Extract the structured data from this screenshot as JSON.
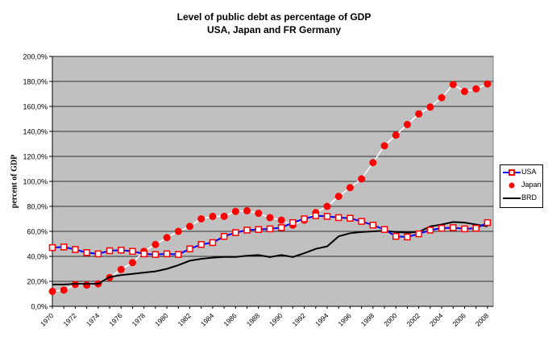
{
  "chart_data": {
    "type": "line",
    "title": "Level of public debt as percentage of GDP",
    "subtitle": "USA, Japan and FR Germany",
    "ylabel": "percent of GDP",
    "xlabel": "",
    "ylim": [
      0,
      200
    ],
    "y_ticks": [
      "0,0%",
      "20,0%",
      "40,0%",
      "60,0%",
      "80,0%",
      "100,0%",
      "120,0%",
      "140,0%",
      "160,0%",
      "180,0%",
      "200,0%"
    ],
    "x_ticks": [
      "1970",
      "1972",
      "1974",
      "1976",
      "1978",
      "1980",
      "1982",
      "1984",
      "1986",
      "1988",
      "1990",
      "1992",
      "1994",
      "1996",
      "1998",
      "2000",
      "2002",
      "2004",
      "2006",
      "2008"
    ],
    "grid": true,
    "legend_position": "right",
    "plot_background": "#c0c0c0",
    "x": [
      1970,
      1971,
      1972,
      1973,
      1974,
      1975,
      1976,
      1977,
      1978,
      1979,
      1980,
      1981,
      1982,
      1983,
      1984,
      1985,
      1986,
      1987,
      1988,
      1989,
      1990,
      1991,
      1992,
      1993,
      1994,
      1995,
      1996,
      1997,
      1998,
      1999,
      2000,
      2001,
      2002,
      2003,
      2004,
      2005,
      2006,
      2007,
      2008
    ],
    "series": [
      {
        "name": "USA",
        "color": "#0000ff",
        "marker": "square-red",
        "values": [
          47,
          47.5,
          45.5,
          43,
          42,
          44.5,
          45,
          44,
          42,
          41.5,
          42,
          41.5,
          46,
          49.5,
          51,
          56,
          59,
          61,
          61.5,
          62,
          63,
          67,
          70,
          72.5,
          72,
          71,
          70.5,
          68,
          65,
          61.5,
          56,
          55.5,
          58,
          61,
          62.5,
          63,
          62,
          62.5,
          67
        ]
      },
      {
        "name": "Japan",
        "color": "#ff0000",
        "marker": "circle-red",
        "values": [
          12,
          13,
          17.5,
          17,
          18,
          23,
          29.5,
          35,
          44,
          49.5,
          55,
          60,
          64,
          70,
          72,
          72,
          76,
          76.5,
          74.5,
          71,
          69,
          65,
          69,
          75,
          80,
          88,
          95,
          102,
          115,
          128.5,
          137,
          145.5,
          154,
          159.5,
          167,
          177.5,
          172,
          174,
          178
        ]
      },
      {
        "name": "BRD",
        "color": "#000000",
        "marker": "none",
        "values": [
          17.5,
          17.5,
          18,
          18,
          18,
          23.5,
          25,
          26,
          27,
          28,
          30,
          33,
          36.5,
          38,
          39,
          39.5,
          39.5,
          40.5,
          41,
          39.5,
          41,
          39.5,
          42.5,
          46,
          48,
          56,
          58.5,
          59.5,
          60,
          60.5,
          59.5,
          59,
          59.5,
          64,
          65.5,
          67.5,
          67,
          65.5,
          64
        ]
      }
    ]
  }
}
